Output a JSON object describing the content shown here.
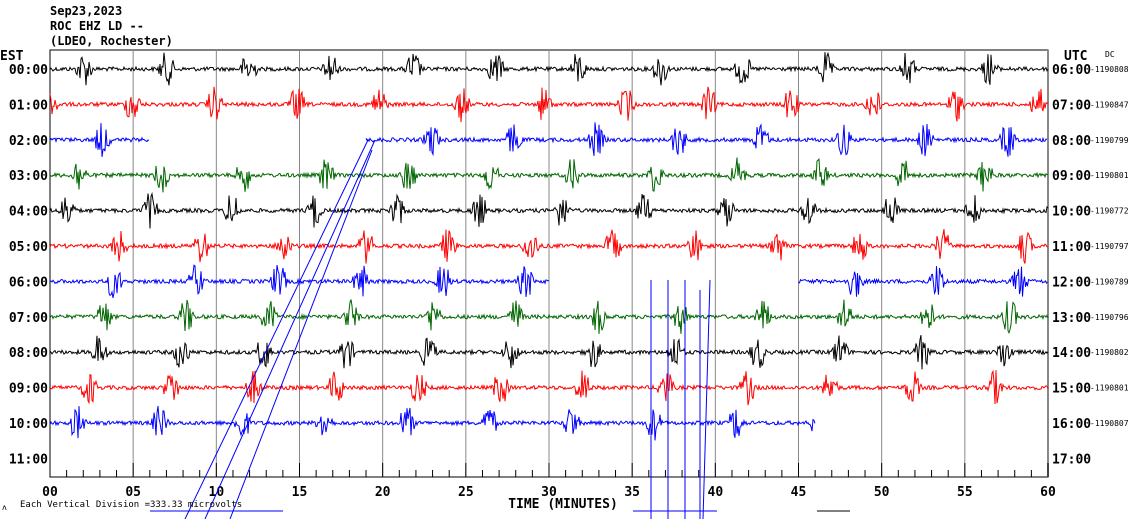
{
  "header": {
    "date": "Sep23,2023",
    "station": "ROC EHZ LD --",
    "network": "(LDEO, Rochester)"
  },
  "chart_data": {
    "type": "line",
    "title": "ROC EHZ LD -- Sep23,2023",
    "left_axis_label": "EST",
    "right_axis_label": "UTC",
    "dc_label": "DC",
    "xlabel": "TIME (MINUTES)",
    "xlim": [
      0,
      60
    ],
    "x_ticks": [
      "00",
      "05",
      "10",
      "15",
      "20",
      "25",
      "30",
      "35",
      "40",
      "45",
      "50",
      "55",
      "60"
    ],
    "scale_text": "Each Vertical Division =",
    "scale_value": "333.33 microvolts",
    "corner_mark": "ʌ",
    "rows": [
      {
        "est": "00:00",
        "utc": "06:00",
        "dc": "-1190808",
        "color": "#000000",
        "start": 0,
        "end": 60,
        "phase": 1.5
      },
      {
        "est": "01:00",
        "utc": "07:00",
        "dc": "-1190847",
        "color": "#ff0000",
        "start": 0,
        "end": 60,
        "phase": 4.4
      },
      {
        "est": "02:00",
        "utc": "08:00",
        "dc": "-1190799",
        "color": "#0000ff",
        "start": 0,
        "end": 6,
        "resume": 19,
        "phase": 2.6
      },
      {
        "est": "03:00",
        "utc": "09:00",
        "dc": "-1190801",
        "color": "#006600",
        "start": 0,
        "end": 60,
        "phase": 1.2
      },
      {
        "est": "04:00",
        "utc": "10:00",
        "dc": "-1190772",
        "color": "#000000",
        "start": 0,
        "end": 60,
        "phase": 0.5
      },
      {
        "est": "05:00",
        "utc": "11:00",
        "dc": "-1190797",
        "color": "#ff0000",
        "start": 0,
        "end": 60,
        "phase": 3.6
      },
      {
        "est": "06:00",
        "utc": "12:00",
        "dc": "-1190789",
        "color": "#0000ff",
        "start": 0,
        "end": 30,
        "resume": 45,
        "phase": 3.3
      },
      {
        "est": "07:00",
        "utc": "13:00",
        "dc": "-1190796",
        "color": "#006600",
        "start": 0,
        "end": 60,
        "phase": 2.7
      },
      {
        "est": "08:00",
        "utc": "14:00",
        "dc": "-1190802",
        "color": "#000000",
        "start": 0,
        "end": 60,
        "phase": 2.4
      },
      {
        "est": "09:00",
        "utc": "15:00",
        "dc": "-1190801",
        "color": "#ff0000",
        "start": 0,
        "end": 60,
        "phase": 1.8
      },
      {
        "est": "10:00",
        "utc": "16:00",
        "dc": "-1190807",
        "color": "#0000ff",
        "start": 0,
        "end": 46,
        "phase": 1.1
      },
      {
        "est": "11:00",
        "utc": "17:00",
        "dc": "",
        "color": "#0000ff",
        "start": 0,
        "end": 0,
        "phase": 0
      }
    ],
    "burst_period_minutes": 4.95
  }
}
